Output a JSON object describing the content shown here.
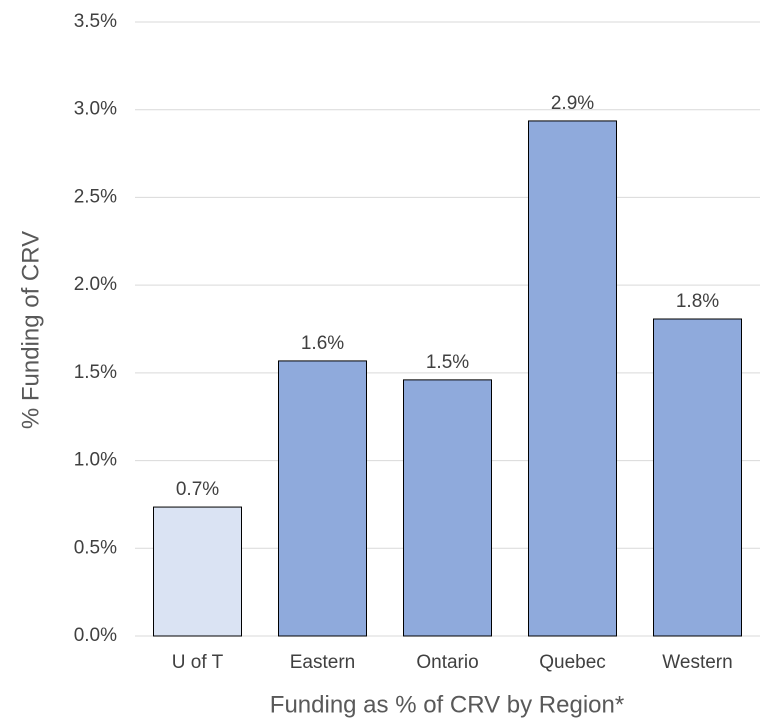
{
  "chart_data": {
    "type": "bar",
    "x_label": "Funding as % of CRV by Region*",
    "y_label": "% Funding of CRV",
    "categories": [
      "U of T",
      "Eastern",
      "Ontario",
      "Quebec",
      "Western"
    ],
    "values": [
      0.735,
      1.568,
      1.46,
      2.936,
      1.807
    ],
    "value_labels": [
      "0.7%",
      "1.6%",
      "1.5%",
      "2.9%",
      "1.8%"
    ],
    "colors": [
      "#dae3f3",
      "#8faadc",
      "#8faadc",
      "#8faadc",
      "#8faadc"
    ],
    "ylim": [
      0,
      3.5
    ],
    "yticks": [
      {
        "value": 0,
        "label": "0.0%"
      },
      {
        "value": 0.5,
        "label": "0.5%"
      },
      {
        "value": 1,
        "label": "1.0%"
      },
      {
        "value": 1.5,
        "label": "1.5%"
      },
      {
        "value": 2,
        "label": "2.0%"
      },
      {
        "value": 2.5,
        "label": "2.5%"
      },
      {
        "value": 3,
        "label": "3.0%"
      },
      {
        "value": 3.5,
        "label": "3.5%"
      }
    ],
    "grid": true
  }
}
